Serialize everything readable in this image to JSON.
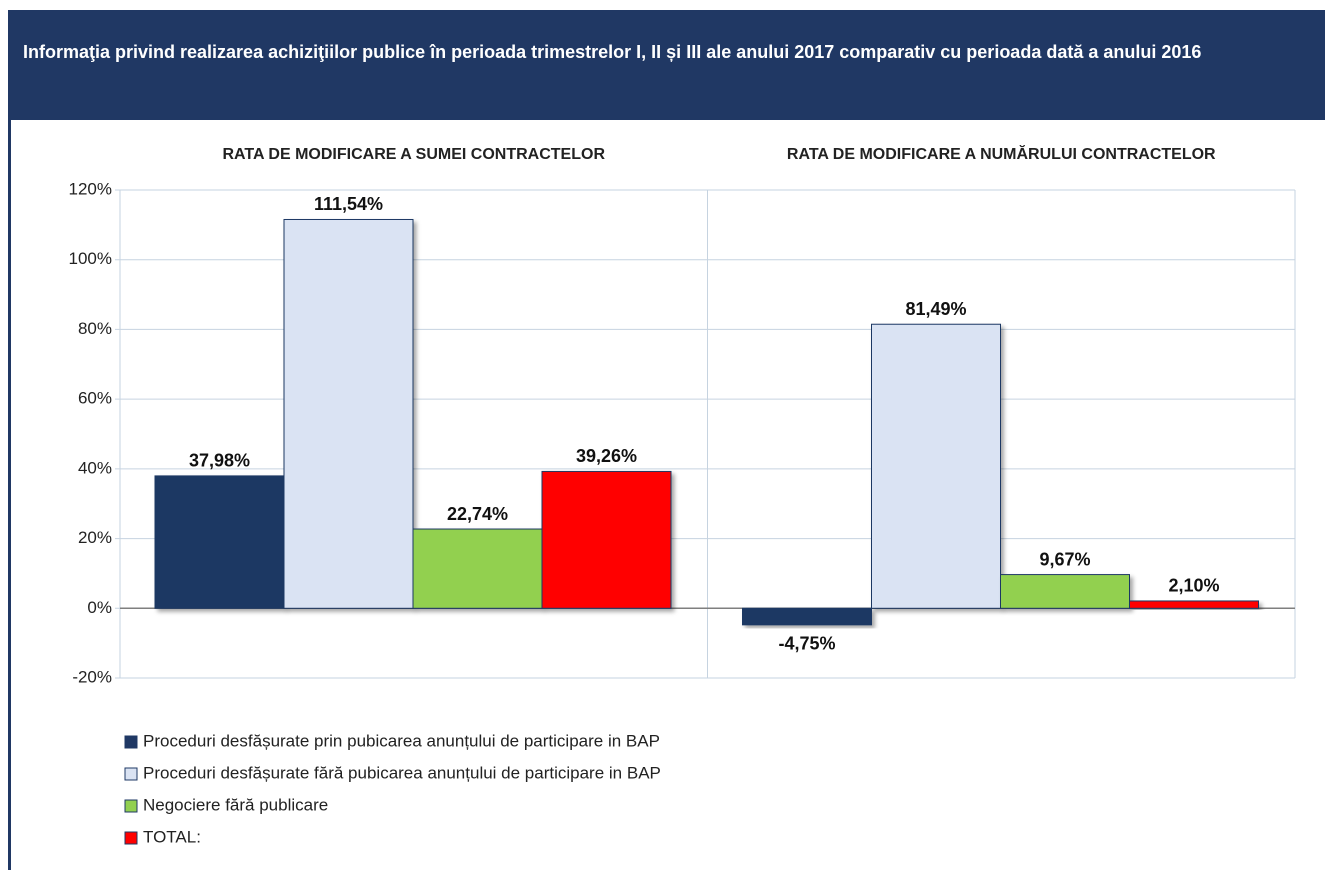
{
  "chart_data": {
    "type": "bar",
    "title": "Informaţia privind realizarea achiziţiilor publice în perioada trimestrelor I, II și III ale anului 2017 comparativ cu perioada dată a anului 2016",
    "categories": [
      "RATA DE MODIFICARE A SUMEI CONTRACTELOR",
      "RATA DE MODIFICARE A NUMĂRULUI CONTRACTELOR"
    ],
    "series": [
      {
        "name": "Proceduri desfășurate prin pubicarea anunțului de participare in BAP",
        "color": "#1f3864",
        "values": [
          37.98,
          -4.75
        ],
        "value_labels": [
          "37,98%",
          "-4,75%"
        ]
      },
      {
        "name": "Proceduri desfășurate fără pubicarea anunțului de participare in BAP",
        "color": "#dae3f3",
        "values": [
          111.54,
          81.49
        ],
        "value_labels": [
          "111,54%",
          "81,49%"
        ]
      },
      {
        "name": "Negociere fără publicare",
        "color": "#92d050",
        "values": [
          22.74,
          9.67
        ],
        "value_labels": [
          "22,74%",
          "9,67%"
        ]
      },
      {
        "name": "TOTAL:",
        "color": "#ff0000",
        "values": [
          39.26,
          2.1
        ],
        "value_labels": [
          "39,26%",
          "2,10%"
        ]
      }
    ],
    "ylim": [
      -20,
      120
    ],
    "yticks": [
      {
        "value": -20,
        "label": "-20%"
      },
      {
        "value": 0,
        "label": "0%"
      },
      {
        "value": 20,
        "label": "20%"
      },
      {
        "value": 40,
        "label": "40%"
      },
      {
        "value": 60,
        "label": "60%"
      },
      {
        "value": 80,
        "label": "80%"
      },
      {
        "value": 100,
        "label": "100%"
      },
      {
        "value": 120,
        "label": "120%"
      }
    ],
    "grid": true
  }
}
